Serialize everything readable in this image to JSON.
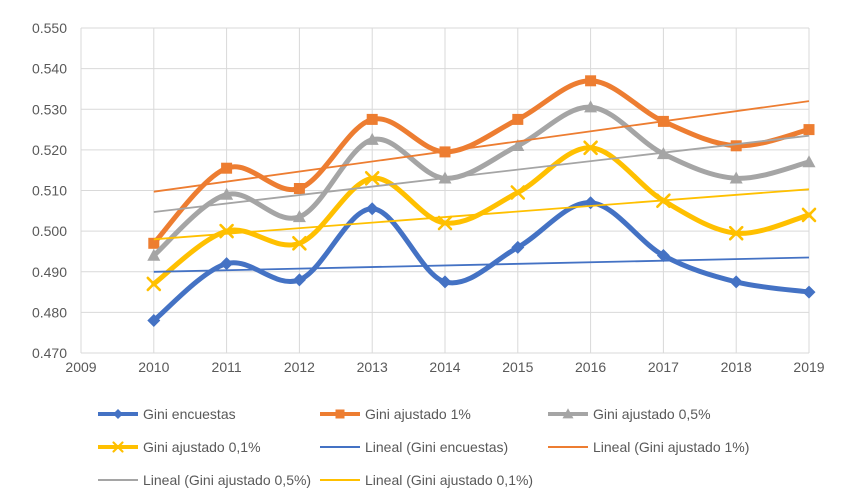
{
  "chart_data": {
    "type": "line",
    "title": "",
    "xlabel": "",
    "ylabel": "",
    "x": [
      2010,
      2011,
      2012,
      2013,
      2014,
      2015,
      2016,
      2017,
      2018,
      2019
    ],
    "x_range": [
      2009,
      2019
    ],
    "x_tick_labels": [
      "2009",
      "2010",
      "2011",
      "2012",
      "2013",
      "2014",
      "2015",
      "2016",
      "2017",
      "2018",
      "2019"
    ],
    "ylim": [
      0.47,
      0.55
    ],
    "y_tick_step": 0.01,
    "y_tick_labels": [
      "0.550",
      "0.540",
      "0.530",
      "0.520",
      "0.510",
      "0.500",
      "0.490",
      "0.480",
      "0.470"
    ],
    "grid": true,
    "legend_position": "bottom",
    "series": [
      {
        "name": "Gini encuestas",
        "color": "#4472C4",
        "marker": "diamond",
        "values": [
          0.478,
          0.492,
          0.488,
          0.5055,
          0.4875,
          0.496,
          0.507,
          0.494,
          0.4875,
          0.485
        ]
      },
      {
        "name": "Gini ajustado 1%",
        "color": "#ED7D31",
        "marker": "square",
        "values": [
          0.497,
          0.5155,
          0.5105,
          0.5275,
          0.5195,
          0.5275,
          0.537,
          0.527,
          0.521,
          0.525
        ]
      },
      {
        "name": "Gini ajustado 0,5%",
        "color": "#A5A5A5",
        "marker": "triangle",
        "values": [
          0.494,
          0.509,
          0.5035,
          0.5225,
          0.513,
          0.521,
          0.5305,
          0.519,
          0.513,
          0.517
        ]
      },
      {
        "name": "Gini ajustado 0,1%",
        "color": "#FFC000",
        "marker": "x",
        "values": [
          0.487,
          0.5,
          0.497,
          0.513,
          0.502,
          0.5095,
          0.5205,
          0.5075,
          0.4995,
          0.504
        ]
      }
    ],
    "trendlines": [
      {
        "name": "Lineal (Gini encuestas)",
        "color": "#4472C4",
        "x_start": 2010,
        "x_end": 2019,
        "start": 0.49,
        "end": 0.4935
      },
      {
        "name": "Lineal (Gini ajustado 1%)",
        "color": "#ED7D31",
        "x_start": 2010,
        "x_end": 2019,
        "start": 0.5097,
        "end": 0.532
      },
      {
        "name": "Lineal (Gini ajustado 0,5%)",
        "color": "#A5A5A5",
        "x_start": 2010,
        "x_end": 2019,
        "start": 0.5047,
        "end": 0.5235
      },
      {
        "name": "Lineal (Gini ajustado 0,1%)",
        "color": "#FFC000",
        "x_start": 2010,
        "x_end": 2019,
        "start": 0.498,
        "end": 0.5103
      }
    ]
  },
  "styles": {
    "background": "#FFFFFF",
    "gridline_color": "#D9D9D9",
    "axis_text_color": "#595959",
    "series_line_width": 5,
    "trend_line_width": 1.8
  }
}
